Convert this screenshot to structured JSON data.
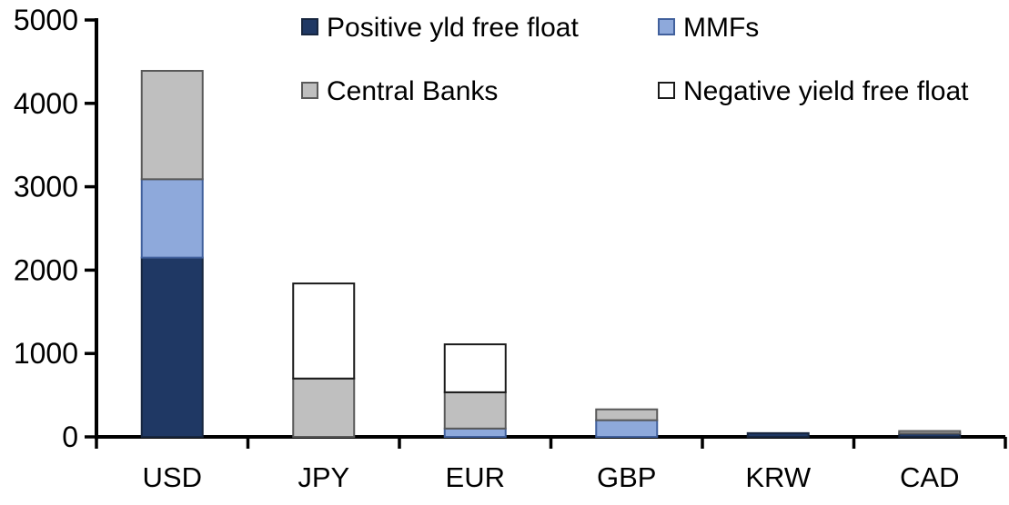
{
  "chart_data": {
    "type": "bar",
    "stacked": true,
    "title": "",
    "xlabel": "",
    "ylabel": "",
    "grid": false,
    "legend_position": "top",
    "ylim": [
      0,
      5000
    ],
    "yticks": [
      0,
      1000,
      2000,
      3000,
      4000,
      5000
    ],
    "categories": [
      "USD",
      "JPY",
      "EUR",
      "GBP",
      "KRW",
      "CAD"
    ],
    "series": [
      {
        "name": "Positive yld free float",
        "color": "#1F3864",
        "border": "#17263F",
        "values": [
          2150,
          0,
          0,
          0,
          45,
          40
        ]
      },
      {
        "name": "MMFs",
        "color": "#8EA9DB",
        "border": "#41609C",
        "values": [
          940,
          0,
          100,
          200,
          0,
          0
        ]
      },
      {
        "name": "Central Banks",
        "color": "#BFBFBF",
        "border": "#595959",
        "values": [
          1300,
          700,
          435,
          130,
          0,
          30
        ]
      },
      {
        "name": "Negative yield free float",
        "color": "#FFFFFF",
        "border": "#1A1A1A",
        "values": [
          0,
          1140,
          575,
          0,
          0,
          0
        ]
      }
    ],
    "axis_color": "#000000"
  }
}
